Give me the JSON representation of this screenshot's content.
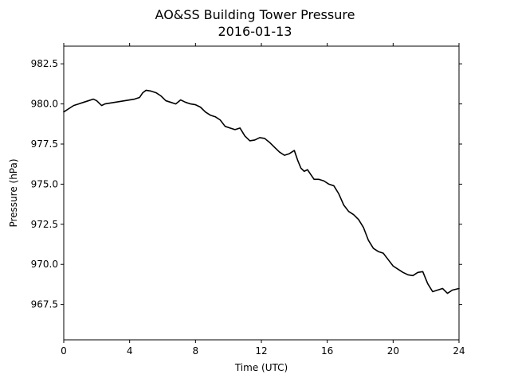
{
  "chart_data": {
    "type": "line",
    "title": "AO&SS Building Tower Pressure",
    "subtitle": "2016-01-13",
    "xlabel": "Time (UTC)",
    "ylabel": "Pressure (hPa)",
    "xlim": [
      0,
      24
    ],
    "ylim": [
      965.3,
      983.6
    ],
    "x_ticks": [
      0,
      4,
      8,
      12,
      16,
      20,
      24
    ],
    "x_tick_labels": [
      "0",
      "4",
      "8",
      "12",
      "16",
      "20",
      "24"
    ],
    "y_ticks": [
      967.5,
      970.0,
      972.5,
      975.0,
      977.5,
      980.0,
      982.5
    ],
    "y_tick_labels": [
      "967.5",
      "970.0",
      "972.5",
      "975.0",
      "977.5",
      "980.0",
      "982.5"
    ],
    "grid": false,
    "line_color": "#000000",
    "series": [
      {
        "x": [
          0,
          0.3,
          0.6,
          0.9,
          1.2,
          1.5,
          1.8,
          2.0,
          2.3,
          2.5,
          2.8,
          3.1,
          3.4,
          3.7,
          4.0,
          4.3,
          4.6,
          4.8,
          5.0,
          5.3,
          5.6,
          5.9,
          6.2,
          6.5,
          6.8,
          7.1,
          7.4,
          7.7,
          8.0,
          8.3,
          8.6,
          8.9,
          9.2,
          9.5,
          9.8,
          10.1,
          10.4,
          10.7,
          11.0,
          11.3,
          11.6,
          11.9,
          12.2,
          12.5,
          12.8,
          13.1,
          13.4,
          13.7,
          14.0,
          14.2,
          14.4,
          14.6,
          14.8,
          15.0,
          15.2,
          15.5,
          15.8,
          16.1,
          16.4,
          16.7,
          17.0,
          17.3,
          17.6,
          17.9,
          18.2,
          18.5,
          18.8,
          19.1,
          19.4,
          19.7,
          20.0,
          20.3,
          20.6,
          20.9,
          21.2,
          21.5,
          21.8,
          22.1,
          22.4,
          22.7,
          23.0,
          23.3,
          23.6,
          24.0
        ],
        "y": [
          979.5,
          979.7,
          979.9,
          980.0,
          980.1,
          980.2,
          980.3,
          980.2,
          979.9,
          980.0,
          980.05,
          980.1,
          980.15,
          980.2,
          980.25,
          980.3,
          980.4,
          980.7,
          980.85,
          980.8,
          980.7,
          980.5,
          980.2,
          980.1,
          980.0,
          980.25,
          980.1,
          980.0,
          979.95,
          979.8,
          979.5,
          979.3,
          979.2,
          979.0,
          978.6,
          978.5,
          978.4,
          978.5,
          978.0,
          977.7,
          977.75,
          977.9,
          977.85,
          977.6,
          977.3,
          977.0,
          976.8,
          976.9,
          977.1,
          976.5,
          976.0,
          975.8,
          975.9,
          975.6,
          975.3,
          975.3,
          975.2,
          975.0,
          974.9,
          974.4,
          973.7,
          973.3,
          973.1,
          972.8,
          972.3,
          971.5,
          971.0,
          970.8,
          970.7,
          970.3,
          969.9,
          969.7,
          969.5,
          969.35,
          969.3,
          969.5,
          969.55,
          968.8,
          968.3,
          968.4,
          968.5,
          968.2,
          968.4,
          968.5
        ]
      }
    ]
  }
}
